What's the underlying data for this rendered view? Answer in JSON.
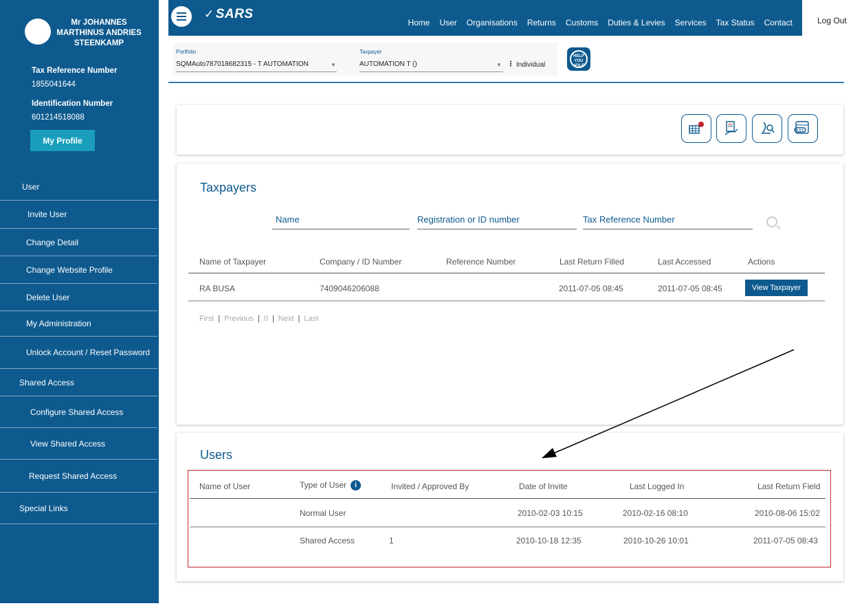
{
  "profile": {
    "name": "Mr JOHANNES MARTHINUS ANDRIES STEENKAMP",
    "tax_ref_label": "Tax Reference Number",
    "tax_ref_value": "1855041644",
    "id_label": "Identification Number",
    "id_value": "601214518088",
    "my_profile_label": "My Profile"
  },
  "menu": [
    {
      "label": "User",
      "level": "top"
    },
    {
      "label": "Invite User",
      "level": "sub"
    },
    {
      "label": "Change Detail",
      "level": "sub"
    },
    {
      "label": "Change Website Profile",
      "level": "sub"
    },
    {
      "label": "Delete User",
      "level": "sub"
    },
    {
      "label": "My Administration",
      "level": "sub"
    },
    {
      "label": "Unlock Account / Reset Password",
      "level": "sub"
    },
    {
      "label": "Shared Access",
      "level": "top"
    },
    {
      "label": "Configure Shared Access",
      "level": "sub2"
    },
    {
      "label": "View Shared Access",
      "level": "sub2"
    },
    {
      "label": "Request Shared Access",
      "level": "sub2"
    },
    {
      "label": "Special Links",
      "level": "top"
    }
  ],
  "header": {
    "logo": "SARS",
    "nav": [
      "Home",
      "User",
      "Organisations",
      "Returns",
      "Customs",
      "Duties & Levies",
      "Services",
      "Tax Status",
      "Contact"
    ],
    "logout": "Log Out"
  },
  "portfolio": {
    "portfolio_label": "Portfolio",
    "portfolio_value": "SQMAuto787018682315 - T AUTOMATION",
    "taxpayer_label": "Taxpayer",
    "taxpayer_value": "AUTOMATION T ()",
    "type_value": "Individual",
    "help_text": "HELP YOU eFILE"
  },
  "taxpayers": {
    "title": "Taxpayers",
    "search": {
      "name": "Name",
      "reg": "Registration or ID number",
      "taxref": "Tax Reference Number"
    },
    "columns": [
      "Name of Taxpayer",
      "Company  / ID Number",
      "Reference Number",
      "Last Return Filled",
      "Last Accessed",
      "Actions"
    ],
    "rows": [
      {
        "name": "RA BUSA",
        "id": "7409046206088",
        "ref": "",
        "last_return": "2011-07-05  08:45",
        "last_accessed": "2011-07-05  08:45",
        "action": "View Taxpayer"
      }
    ],
    "pager": {
      "first": "First",
      "previous": "Previous",
      "page": "0",
      "next": "Next",
      "last": "Last"
    }
  },
  "users": {
    "title": "Users",
    "columns": [
      "Name of  User",
      "Type of User",
      "Invited / Approved By",
      "Date of Invite",
      "Last Logged In",
      "Last Return Field"
    ],
    "rows": [
      {
        "name": "",
        "type": "Normal User",
        "invited": "",
        "date_invite": "2010-02-03  10:15",
        "last_login": "2010-02-16  08:10",
        "last_return": "2010-08-06  15:02"
      },
      {
        "name": "",
        "type": "Shared Access",
        "invited": "1",
        "date_invite": "2010-10-18  12:35",
        "last_login": "2010-10-26  10:01",
        "last_return": "2011-07-05  08:43"
      }
    ]
  },
  "colors": {
    "brand_blue": "#0e5a8e",
    "accent_teal": "#1a9ebc",
    "highlight_red": "#c0272d"
  }
}
